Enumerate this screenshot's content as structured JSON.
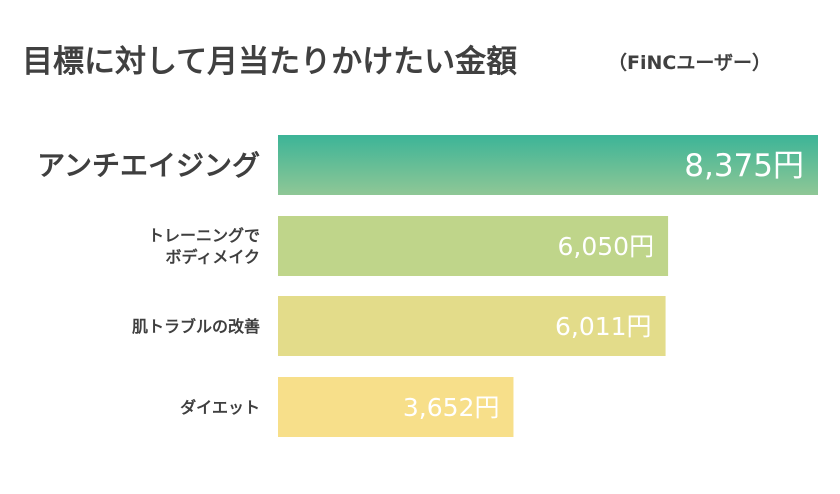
{
  "chart_data": {
    "type": "bar",
    "orientation": "horizontal",
    "title": "目標に対して月当たりかけたい金額",
    "subtitle": "（FiNCユーザー）",
    "categories": [
      [
        "アンチエイジング"
      ],
      [
        "トレーニングで",
        "ボディメイク"
      ],
      [
        "肌トラブルの改善"
      ],
      [
        "ダイエット"
      ]
    ],
    "values": [
      8375,
      6050,
      6011,
      3652
    ],
    "value_labels": [
      "8,375円",
      "6,050円",
      "6,011円",
      "3,652円"
    ],
    "xlim": [
      0,
      8375
    ],
    "grid": false,
    "legend": "none",
    "colors": {
      "bar_top_start": "#3cb497",
      "bar_top_end": "#8fc796",
      "bars": [
        "#9ccc8e",
        "#bfd58a",
        "#e3dc8a",
        "#f7df8a"
      ],
      "value_text": "#ffffff",
      "title_text": "#404040"
    }
  }
}
